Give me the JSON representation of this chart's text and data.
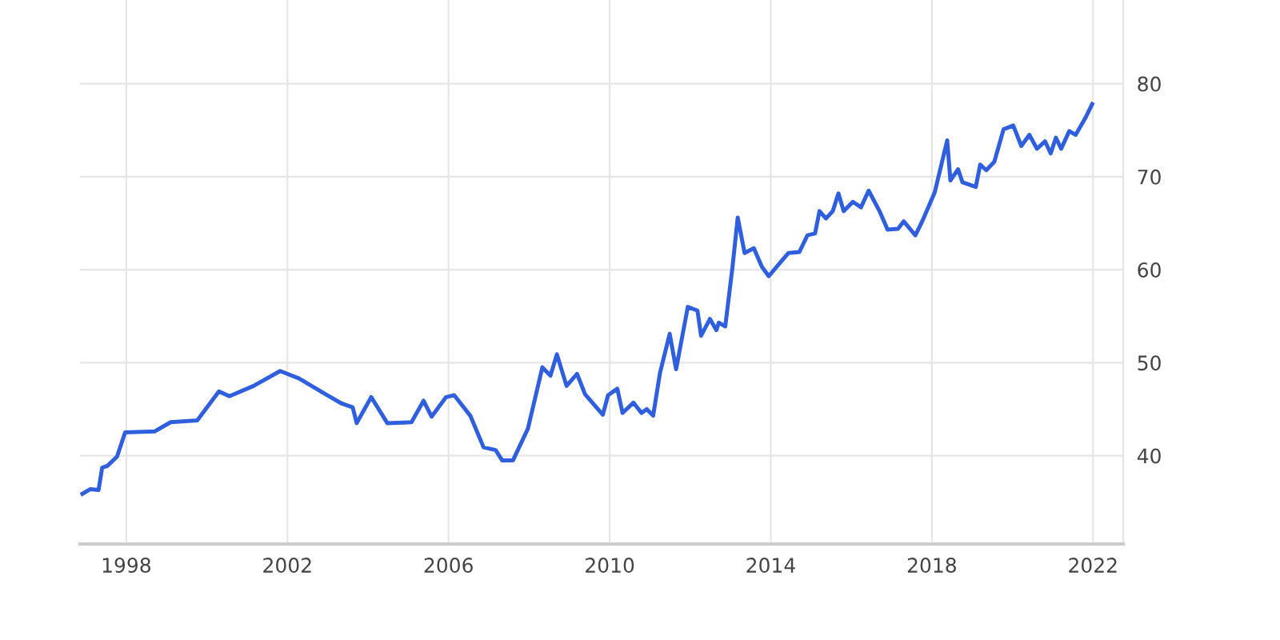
{
  "chart_data": {
    "type": "line",
    "xlim": [
      1996.85,
      2022.75
    ],
    "ylim": [
      30.5,
      89
    ],
    "xticks": [
      1998,
      2002,
      2006,
      2010,
      2014,
      2018,
      2022
    ],
    "yticks": [
      40,
      50,
      60,
      70,
      80
    ],
    "grid": true,
    "marker": "none",
    "line_style": "solid",
    "series": [
      {
        "color": "#2f5fdc",
        "x": [
          1996.91,
          1997.11,
          1997.31,
          1997.4,
          1997.53,
          1997.77,
          1997.97,
          1998.7,
          1999.1,
          1999.76,
          2000.3,
          2000.56,
          2001.16,
          2001.82,
          2002.29,
          2002.95,
          2003.35,
          2003.62,
          2003.72,
          2004.08,
          2004.48,
          2005.08,
          2005.38,
          2005.58,
          2005.94,
          2006.14,
          2006.54,
          2006.87,
          2007.17,
          2007.33,
          2007.6,
          2007.97,
          2008.33,
          2008.53,
          2008.69,
          2008.93,
          2009.19,
          2009.39,
          2009.83,
          2009.96,
          2010.19,
          2010.32,
          2010.59,
          2010.79,
          2010.92,
          2011.08,
          2011.25,
          2011.49,
          2011.65,
          2011.94,
          2012.18,
          2012.27,
          2012.49,
          2012.65,
          2012.71,
          2012.87,
          2013.05,
          2013.18,
          2013.35,
          2013.58,
          2013.78,
          2013.95,
          2014.24,
          2014.44,
          2014.71,
          2014.91,
          2015.1,
          2015.21,
          2015.37,
          2015.54,
          2015.68,
          2015.81,
          2016.04,
          2016.24,
          2016.43,
          2016.7,
          2016.9,
          2017.16,
          2017.3,
          2017.59,
          2017.76,
          2018.07,
          2018.38,
          2018.46,
          2018.65,
          2018.76,
          2019.09,
          2019.2,
          2019.35,
          2019.55,
          2019.78,
          2020.02,
          2020.22,
          2020.42,
          2020.61,
          2020.81,
          2020.95,
          2021.08,
          2021.21,
          2021.41,
          2021.57,
          2021.81,
          2021.98
        ],
        "values": [
          35.9,
          36.4,
          36.3,
          38.7,
          38.9,
          39.9,
          42.5,
          42.6,
          43.6,
          43.8,
          46.9,
          46.4,
          47.5,
          49.1,
          48.3,
          46.6,
          45.6,
          45.2,
          43.5,
          46.3,
          43.5,
          43.6,
          45.9,
          44.2,
          46.3,
          46.5,
          44.3,
          40.9,
          40.6,
          39.5,
          39.5,
          42.9,
          49.5,
          48.6,
          50.9,
          47.5,
          48.8,
          46.6,
          44.4,
          46.5,
          47.2,
          44.6,
          45.7,
          44.6,
          45.0,
          44.3,
          48.9,
          53.1,
          49.3,
          56.0,
          55.6,
          52.9,
          54.7,
          53.5,
          54.3,
          53.9,
          60.3,
          65.6,
          61.8,
          62.3,
          60.3,
          59.3,
          60.8,
          61.8,
          61.9,
          63.7,
          63.9,
          66.3,
          65.5,
          66.3,
          68.2,
          66.3,
          67.3,
          66.7,
          68.5,
          66.3,
          64.3,
          64.4,
          65.2,
          63.7,
          65.2,
          68.3,
          73.9,
          69.6,
          70.8,
          69.4,
          68.9,
          71.3,
          70.7,
          71.6,
          75.1,
          75.5,
          73.3,
          74.5,
          73.0,
          73.8,
          72.5,
          74.2,
          73.0,
          74.9,
          74.5,
          76.3,
          77.8
        ]
      }
    ]
  }
}
